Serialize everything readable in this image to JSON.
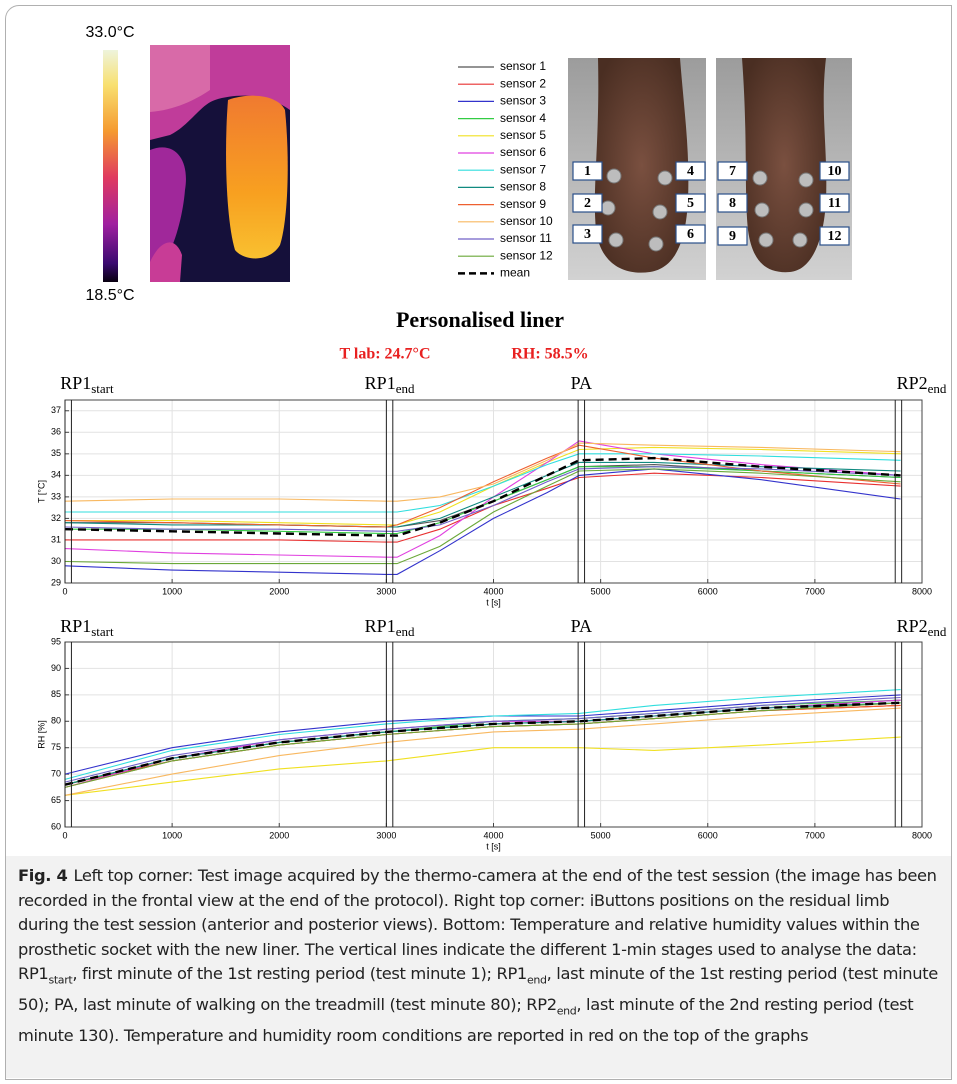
{
  "thermal": {
    "max": "33.0°C",
    "min": "18.5°C"
  },
  "limb": {
    "anterior": [
      "1",
      "2",
      "3",
      "4",
      "5",
      "6"
    ],
    "posterior": [
      "7",
      "8",
      "9",
      "10",
      "11",
      "12"
    ]
  },
  "title": "Personalised liner",
  "room": {
    "temperature": "T lab: 24.7°C",
    "humidity": "RH: 58.5%"
  },
  "chart_data": [
    {
      "type": "line",
      "xlabel": "t [s]",
      "ylabel": "T [°C]",
      "x": [
        0,
        1000,
        2000,
        3000,
        3100,
        3500,
        4000,
        4500,
        4800,
        5500,
        6500,
        7800
      ],
      "xlim": [
        0,
        8000
      ],
      "xticks": [
        0,
        1000,
        2000,
        3000,
        4000,
        5000,
        6000,
        7000,
        8000
      ],
      "ylim": [
        29,
        37.5
      ],
      "yticks": [
        29,
        30,
        31,
        32,
        33,
        34,
        35,
        36,
        37
      ],
      "grid": true,
      "stages": [
        {
          "label": "RP1",
          "sub": "start",
          "x": [
            0,
            60
          ]
        },
        {
          "label": "RP1",
          "sub": "end",
          "x": [
            3000,
            3060
          ]
        },
        {
          "label": "PA",
          "x": [
            4790,
            4850
          ]
        },
        {
          "label": "RP2",
          "sub": "end",
          "x": [
            7750,
            7810
          ]
        }
      ],
      "series": [
        {
          "name": "sensor 1",
          "color": "#555555",
          "values": [
            31.8,
            31.8,
            31.7,
            31.6,
            31.6,
            31.9,
            32.8,
            33.8,
            34.4,
            34.5,
            34.2,
            33.9
          ]
        },
        {
          "name": "sensor 2",
          "color": "#e83030",
          "values": [
            31.0,
            31.0,
            31.0,
            30.9,
            30.9,
            31.5,
            32.6,
            33.4,
            33.9,
            34.1,
            33.9,
            33.5
          ]
        },
        {
          "name": "sensor 3",
          "color": "#3333cc",
          "values": [
            29.8,
            29.6,
            29.5,
            29.4,
            29.4,
            30.5,
            32.0,
            33.2,
            34.0,
            34.3,
            33.8,
            32.9
          ]
        },
        {
          "name": "sensor 4",
          "color": "#33cc44",
          "values": [
            31.5,
            31.5,
            31.4,
            31.3,
            31.3,
            31.8,
            32.8,
            33.8,
            34.4,
            34.4,
            34.2,
            33.9
          ]
        },
        {
          "name": "sensor 5",
          "color": "#f0e020",
          "values": [
            31.9,
            31.9,
            31.8,
            31.7,
            31.7,
            32.3,
            33.5,
            34.6,
            35.2,
            35.3,
            35.2,
            35.0
          ]
        },
        {
          "name": "sensor 6",
          "color": "#e040e0",
          "values": [
            30.6,
            30.4,
            30.3,
            30.2,
            30.2,
            31.2,
            33.0,
            34.6,
            35.6,
            35.0,
            34.5,
            34.0
          ]
        },
        {
          "name": "sensor 7",
          "color": "#30dede",
          "values": [
            32.3,
            32.3,
            32.3,
            32.3,
            32.3,
            32.6,
            33.5,
            34.5,
            35.0,
            35.0,
            34.9,
            34.7
          ]
        },
        {
          "name": "sensor 8",
          "color": "#108a80",
          "values": [
            31.8,
            31.7,
            31.7,
            31.6,
            31.6,
            32.0,
            33.0,
            34.0,
            34.6,
            34.6,
            34.4,
            34.2
          ]
        },
        {
          "name": "sensor 9",
          "color": "#ee6030",
          "values": [
            31.9,
            31.8,
            31.7,
            31.6,
            31.7,
            32.5,
            33.7,
            34.8,
            35.4,
            34.8,
            34.2,
            33.6
          ]
        },
        {
          "name": "sensor 10",
          "color": "#f8b860",
          "values": [
            32.8,
            32.9,
            32.9,
            32.8,
            32.8,
            33.0,
            33.6,
            34.7,
            35.5,
            35.4,
            35.3,
            35.1
          ]
        },
        {
          "name": "sensor 11",
          "color": "#7060c8",
          "values": [
            31.6,
            31.5,
            31.5,
            31.4,
            31.4,
            31.7,
            32.6,
            33.7,
            34.3,
            34.4,
            34.3,
            34.0
          ]
        },
        {
          "name": "sensor 12",
          "color": "#6aa838",
          "values": [
            30.0,
            29.9,
            29.9,
            29.9,
            29.9,
            30.7,
            32.3,
            33.5,
            34.2,
            34.3,
            34.1,
            33.7
          ]
        },
        {
          "name": "mean",
          "color": "#000000",
          "dashed": true,
          "values": [
            31.5,
            31.4,
            31.3,
            31.2,
            31.2,
            31.8,
            32.8,
            34.0,
            34.7,
            34.8,
            34.4,
            34.0
          ]
        }
      ]
    },
    {
      "type": "line",
      "xlabel": "t [s]",
      "ylabel": "RH [%]",
      "x": [
        0,
        1000,
        2000,
        3000,
        4000,
        4800,
        5500,
        6500,
        7800
      ],
      "xlim": [
        0,
        8000
      ],
      "xticks": [
        0,
        1000,
        2000,
        3000,
        4000,
        5000,
        6000,
        7000,
        8000
      ],
      "ylim": [
        60,
        95
      ],
      "yticks": [
        60,
        65,
        70,
        75,
        80,
        85,
        90,
        95
      ],
      "grid": true,
      "stages": [
        {
          "label": "RP1",
          "sub": "start",
          "x": [
            0,
            60
          ]
        },
        {
          "label": "RP1",
          "sub": "end",
          "x": [
            3000,
            3060
          ]
        },
        {
          "label": "PA",
          "x": [
            4790,
            4850
          ]
        },
        {
          "label": "RP2",
          "sub": "end",
          "x": [
            7750,
            7810
          ]
        }
      ],
      "series": [
        {
          "name": "sensor 1",
          "color": "#555555",
          "values": [
            68,
            73,
            76,
            78,
            79.5,
            80,
            81,
            82.5,
            84
          ]
        },
        {
          "name": "sensor 2",
          "color": "#e83030",
          "values": [
            68,
            72.5,
            75.5,
            77.5,
            79,
            79.5,
            80.5,
            82,
            83
          ]
        },
        {
          "name": "sensor 3",
          "color": "#3333cc",
          "values": [
            70,
            75,
            78,
            80,
            81,
            81,
            82,
            83.5,
            85
          ]
        },
        {
          "name": "sensor 4",
          "color": "#33cc44",
          "values": [
            68,
            73,
            76,
            78,
            80,
            80.5,
            81.5,
            83,
            84
          ]
        },
        {
          "name": "sensor 5",
          "color": "#f0e020",
          "values": [
            66,
            68.5,
            71,
            72.5,
            75,
            75,
            74.5,
            75.5,
            77
          ]
        },
        {
          "name": "sensor 6",
          "color": "#e040e0",
          "values": [
            67.5,
            73,
            76.5,
            78.5,
            80,
            80,
            81,
            82.5,
            84
          ]
        },
        {
          "name": "sensor 7",
          "color": "#30dede",
          "values": [
            69,
            74.5,
            77.5,
            79.5,
            81,
            81.5,
            83,
            84.5,
            86
          ]
        },
        {
          "name": "sensor 8",
          "color": "#108a80",
          "values": [
            68,
            73,
            76,
            78,
            79.5,
            80,
            81,
            82.5,
            83.5
          ]
        },
        {
          "name": "sensor 9",
          "color": "#ee6030",
          "values": [
            67.5,
            72.5,
            75.5,
            77.5,
            79,
            79.5,
            80.5,
            82,
            83
          ]
        },
        {
          "name": "sensor 10",
          "color": "#f8b860",
          "values": [
            66,
            70,
            73.5,
            76,
            78,
            78.5,
            79.5,
            81,
            82.5
          ]
        },
        {
          "name": "sensor 11",
          "color": "#7060c8",
          "values": [
            68.5,
            73.5,
            76.5,
            78.5,
            80,
            80.5,
            81.5,
            83,
            84.5
          ]
        },
        {
          "name": "sensor 12",
          "color": "#6aa838",
          "values": [
            67.5,
            72.5,
            75.5,
            77.5,
            79,
            79.5,
            80.5,
            82,
            83.5
          ]
        },
        {
          "name": "mean",
          "color": "#000000",
          "dashed": true,
          "values": [
            68,
            73,
            76,
            78,
            79.5,
            80,
            81,
            82.5,
            83.5
          ]
        }
      ]
    }
  ],
  "caption": {
    "label": "Fig. 4",
    "body": [
      "Left top corner: Test image acquired by the thermo-camera at the end of the test session (the image has been recorded in the frontal view at the end of the protocol). Right top corner: iButtons positions on the residual limb during the test session (anterior and posterior views). Bottom: Temperature and relative humidity values within the prosthetic socket with the new liner. The vertical lines indicate the different 1-min stages used to analyse the data: RP1",
      "start",
      ", first minute of the 1st resting period (test minute 1); RP1",
      "end",
      ", last minute of the 1st resting period (test minute 50); PA, last minute of walking on the treadmill (test minute 80); RP2",
      "end",
      ", last minute of the 2nd resting period (test minute 130). Temperature and humidity room conditions are reported in red on the top of the graphs"
    ]
  }
}
